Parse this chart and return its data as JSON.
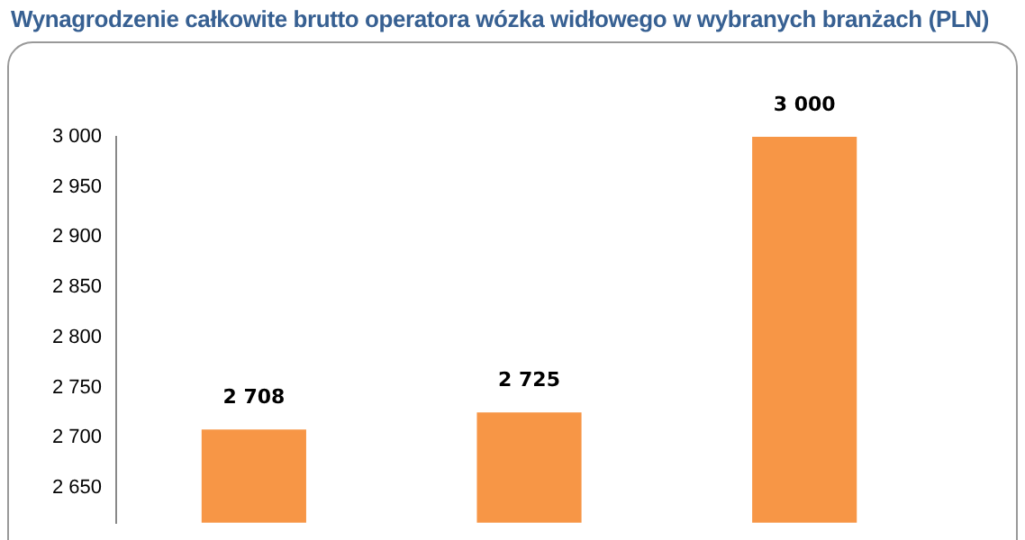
{
  "chart_data": {
    "type": "bar",
    "title": "Wynagrodzenie całkowite brutto operatora wózka widłowego w wybranych branżach (PLN)",
    "categories": [
      null,
      null,
      null
    ],
    "values": [
      2708,
      2725,
      3000
    ],
    "value_labels": [
      "2 708",
      "2 725",
      "3 000"
    ],
    "color": "#f79646",
    "ylim": [
      2615,
      3000
    ],
    "yticks": [
      {
        "value": 2650,
        "label": "2 650"
      },
      {
        "value": 2700,
        "label": "2 700"
      },
      {
        "value": 2750,
        "label": "2 750"
      },
      {
        "value": 2800,
        "label": "2 800"
      },
      {
        "value": 2850,
        "label": "2 850"
      },
      {
        "value": 2900,
        "label": "2 900"
      },
      {
        "value": 2950,
        "label": "2 950"
      },
      {
        "value": 3000,
        "label": "3 000"
      }
    ],
    "grid": false,
    "legend": false
  }
}
